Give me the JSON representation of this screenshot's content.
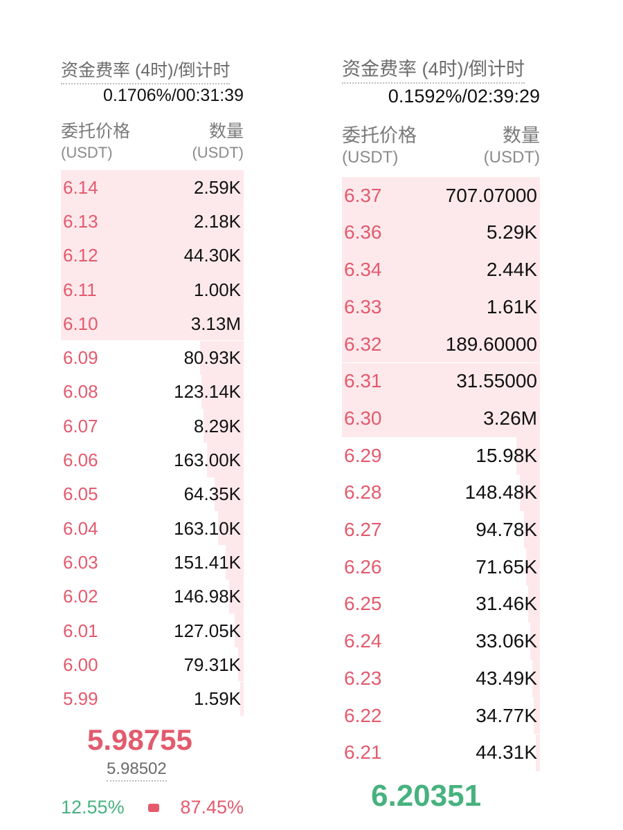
{
  "left": {
    "funding_label": "资金费率 (4时)/倒计时",
    "funding_value": "0.1706%/00:31:39",
    "col_price": "委托价格",
    "col_price_unit": "(USDT)",
    "col_qty": "数量",
    "col_qty_unit": "(USDT)",
    "asks": [
      {
        "price": "6.14",
        "qty": "2.59K",
        "depth": 1.0
      },
      {
        "price": "6.13",
        "qty": "2.18K",
        "depth": 1.0
      },
      {
        "price": "6.12",
        "qty": "44.30K",
        "depth": 1.0
      },
      {
        "price": "6.11",
        "qty": "1.00K",
        "depth": 1.0
      },
      {
        "price": "6.10",
        "qty": "3.13M",
        "depth": 1.0
      },
      {
        "price": "6.09",
        "qty": "80.93K",
        "depth": 0.24
      },
      {
        "price": "6.08",
        "qty": "123.14K",
        "depth": 0.23
      },
      {
        "price": "6.07",
        "qty": "8.29K",
        "depth": 0.22
      },
      {
        "price": "6.06",
        "qty": "163.00K",
        "depth": 0.2
      },
      {
        "price": "6.05",
        "qty": "64.35K",
        "depth": 0.16
      },
      {
        "price": "6.04",
        "qty": "163.10K",
        "depth": 0.14
      },
      {
        "price": "6.03",
        "qty": "151.41K",
        "depth": 0.1
      },
      {
        "price": "6.02",
        "qty": "146.98K",
        "depth": 0.08
      },
      {
        "price": "6.01",
        "qty": "127.05K",
        "depth": 0.05
      },
      {
        "price": "6.00",
        "qty": "79.31K",
        "depth": 0.03
      },
      {
        "price": "5.99",
        "qty": "1.59K",
        "depth": 0.02
      }
    ],
    "mark_price": "5.98755",
    "mark_color": "#e35a6d",
    "index_price": "5.98502",
    "buy_ratio": "12.55%",
    "sell_ratio": "87.45%"
  },
  "right": {
    "funding_label": "资金费率 (4时)/倒计时",
    "funding_value": "0.1592%/02:39:29",
    "col_price": "委托价格",
    "col_price_unit": "(USDT)",
    "col_qty": "数量",
    "col_qty_unit": "(USDT)",
    "asks": [
      {
        "price": "6.37",
        "qty": "707.07000",
        "depth": 1.0
      },
      {
        "price": "6.36",
        "qty": "5.29K",
        "depth": 1.0
      },
      {
        "price": "6.34",
        "qty": "2.44K",
        "depth": 1.0
      },
      {
        "price": "6.33",
        "qty": "1.61K",
        "depth": 1.0
      },
      {
        "price": "6.32",
        "qty": "189.60000",
        "depth": 1.0
      },
      {
        "price": "6.31",
        "qty": "31.55000",
        "depth": 1.0
      },
      {
        "price": "6.30",
        "qty": "3.26M",
        "depth": 1.0
      },
      {
        "price": "6.29",
        "qty": "15.98K",
        "depth": 0.12
      },
      {
        "price": "6.28",
        "qty": "148.48K",
        "depth": 0.1
      },
      {
        "price": "6.27",
        "qty": "94.78K",
        "depth": 0.08
      },
      {
        "price": "6.26",
        "qty": "71.65K",
        "depth": 0.07
      },
      {
        "price": "6.25",
        "qty": "31.46K",
        "depth": 0.06
      },
      {
        "price": "6.24",
        "qty": "33.06K",
        "depth": 0.05
      },
      {
        "price": "6.23",
        "qty": "43.49K",
        "depth": 0.04
      },
      {
        "price": "6.22",
        "qty": "34.77K",
        "depth": 0.03
      },
      {
        "price": "6.21",
        "qty": "44.31K",
        "depth": 0.02
      }
    ],
    "mark_price": "6.20351",
    "mark_color": "#47b27f"
  }
}
